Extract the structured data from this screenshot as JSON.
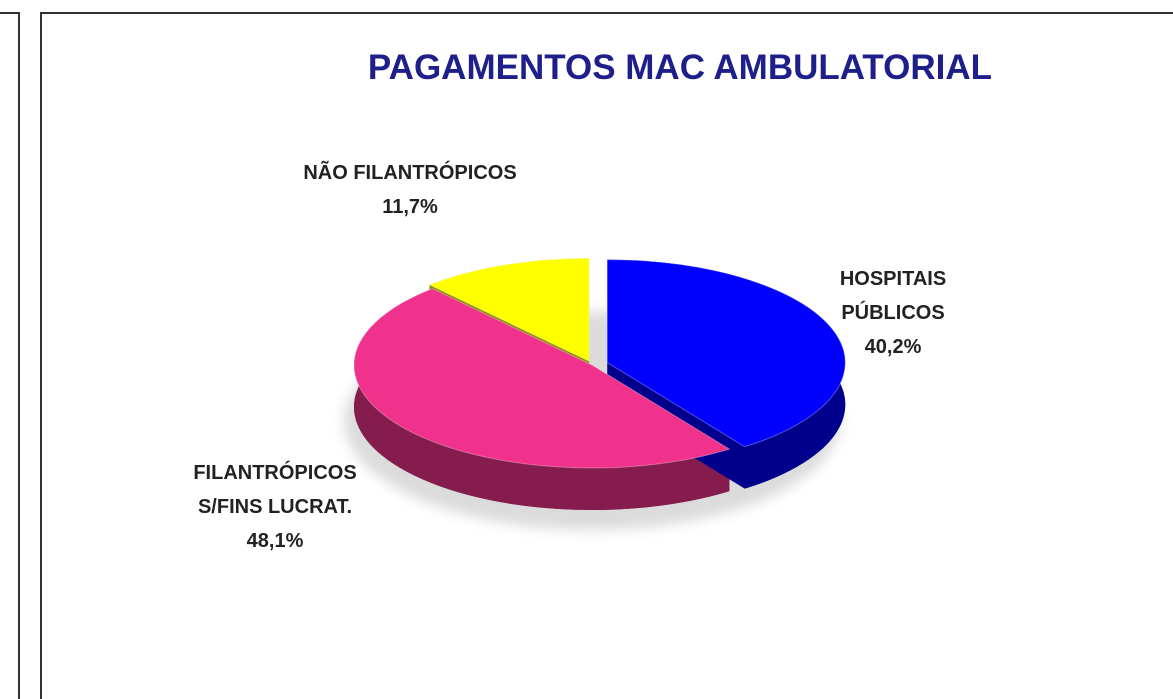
{
  "chart_data": {
    "type": "pie3d",
    "title": "PAGAMENTOS MAC AMBULATORIAL",
    "categories": [
      "HOSPITAIS PÚBLICOS",
      "FILANTRÓPICOS S/FINS LUCRAT.",
      "NÃO FILANTRÓPICOS"
    ],
    "values": [
      40.2,
      48.1,
      11.7
    ],
    "value_labels": [
      "40,2%",
      "48,1%",
      "11,7%"
    ],
    "colors": [
      "#0000ff",
      "#f0328c",
      "#ffff00"
    ]
  }
}
